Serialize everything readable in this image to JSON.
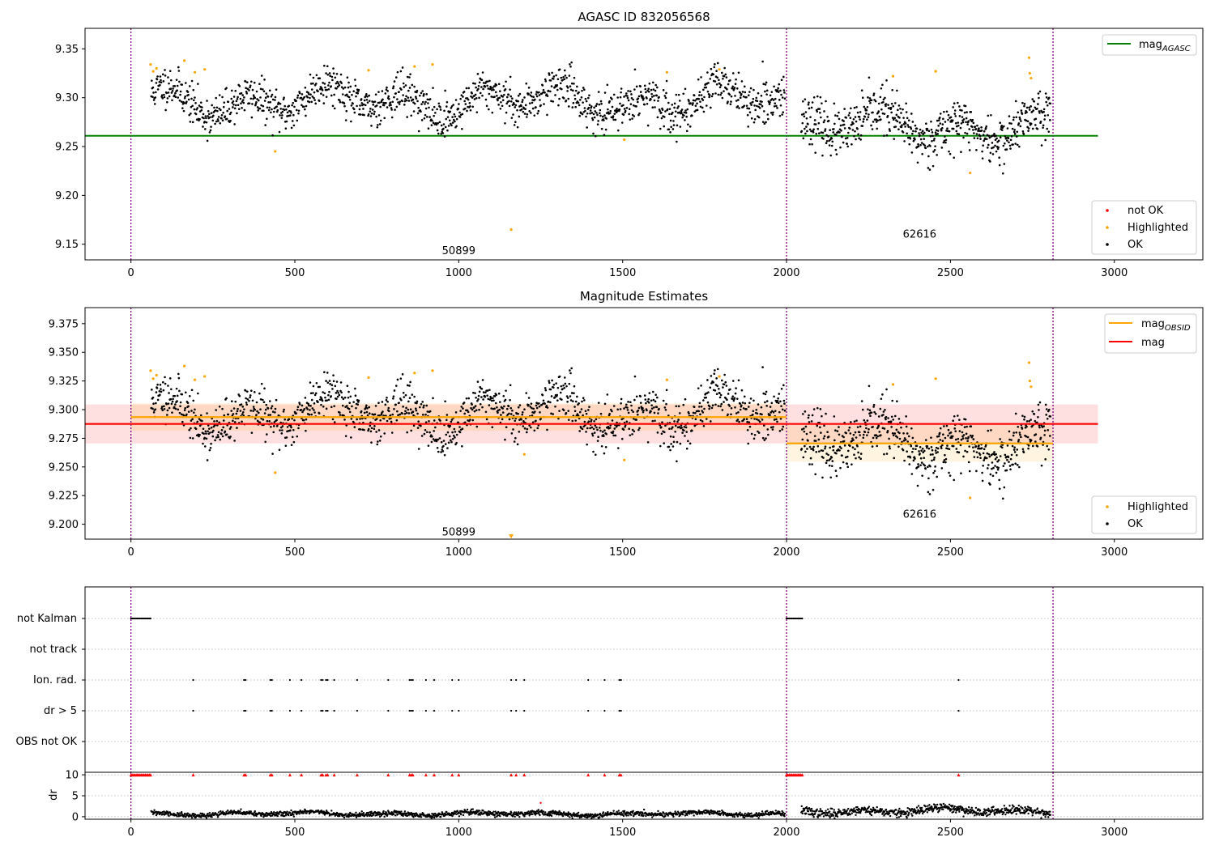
{
  "chart_data": [
    {
      "type": "scatter",
      "title": "AGASC ID 832056568",
      "xlim": [
        -140,
        3270
      ],
      "ylim": [
        9.134,
        9.371
      ],
      "x_ticks": [
        0,
        500,
        1000,
        1500,
        2000,
        2500,
        3000
      ],
      "y_ticks": [
        9.15,
        9.2,
        9.25,
        9.3,
        9.35
      ],
      "y_tick_labels": [
        "9.15",
        "9.20",
        "9.25",
        "9.30",
        "9.35"
      ],
      "obs_boundaries": [
        0,
        2000,
        2813
      ],
      "obsid_labels": [
        {
          "x": 1000,
          "y": 9.143,
          "text": "50899"
        },
        {
          "x": 2406,
          "y": 9.16,
          "text": "62616"
        }
      ],
      "reference_lines": [
        {
          "name": "mag_AGASC",
          "y": 9.261,
          "x_range": [
            -140,
            2950
          ],
          "color": "#008000"
        }
      ],
      "series": [
        {
          "name": "not OK",
          "color": "#ff0000",
          "points": []
        },
        {
          "name": "Highlighted",
          "color": "#ffa500",
          "points": [
            [
              60,
              9.334
            ],
            [
              68,
              9.327
            ],
            [
              78,
              9.33
            ],
            [
              163,
              9.338
            ],
            [
              195,
              9.326
            ],
            [
              225,
              9.329
            ],
            [
              440,
              9.245
            ],
            [
              725,
              9.328
            ],
            [
              865,
              9.332
            ],
            [
              920,
              9.334
            ],
            [
              1160,
              9.165
            ],
            [
              1505,
              9.257
            ],
            [
              1635,
              9.326
            ],
            [
              1795,
              9.329
            ],
            [
              2325,
              9.322
            ],
            [
              2455,
              9.327
            ],
            [
              2560,
              9.223
            ],
            [
              2740,
              9.341
            ],
            [
              2742,
              9.325
            ],
            [
              2746,
              9.32
            ]
          ]
        },
        {
          "name": "OK",
          "color": "#000000",
          "segments": [
            {
              "x_range": [
                62,
                1995
              ],
              "mean": 9.297,
              "amp": 0.012,
              "noise": 0.01,
              "n": 1400,
              "seed": 11
            },
            {
              "x_range": [
                2045,
                2805
              ],
              "mean": 9.27,
              "amp": 0.012,
              "noise": 0.012,
              "n": 600,
              "seed": 23
            }
          ]
        }
      ],
      "legend": {
        "position": "top-right",
        "entries": [
          {
            "label": "mag",
            "sub": "AGASC",
            "color": "#008000",
            "kind": "line"
          }
        ]
      },
      "legend2": {
        "position": "bottom-right",
        "entries": [
          {
            "label": "not OK",
            "color": "#ff0000",
            "kind": "dot"
          },
          {
            "label": "Highlighted",
            "color": "#ffa500",
            "kind": "dot"
          },
          {
            "label": "OK",
            "color": "#000000",
            "kind": "dot"
          }
        ]
      }
    },
    {
      "type": "scatter",
      "title": "Magnitude Estimates",
      "xlim": [
        -140,
        3270
      ],
      "ylim": [
        9.187,
        9.389
      ],
      "x_ticks": [
        0,
        500,
        1000,
        1500,
        2000,
        2500,
        3000
      ],
      "y_ticks": [
        9.2,
        9.225,
        9.25,
        9.275,
        9.3,
        9.325,
        9.35,
        9.375
      ],
      "y_tick_labels": [
        "9.200",
        "9.225",
        "9.250",
        "9.275",
        "9.300",
        "9.325",
        "9.350",
        "9.375"
      ],
      "obs_boundaries": [
        0,
        2000,
        2813
      ],
      "obsid_labels": [
        {
          "x": 1000,
          "y": 9.193,
          "text": "50899"
        },
        {
          "x": 2406,
          "y": 9.2085,
          "text": "62616"
        }
      ],
      "bands": [
        {
          "x_range": [
            -140,
            2950
          ],
          "y_range": [
            9.2705,
            9.3045
          ],
          "color": "#ff0000",
          "opacity": 0.12
        },
        {
          "x_range": [
            0,
            2000
          ],
          "y_range": [
            9.2815,
            9.3055
          ],
          "color": "#ffa500",
          "opacity": 0.12
        },
        {
          "x_range": [
            2000,
            2813
          ],
          "y_range": [
            9.2545,
            9.2865
          ],
          "color": "#ffa500",
          "opacity": 0.12
        }
      ],
      "reference_lines": [
        {
          "name": "mag_OBSID (50899)",
          "y": 9.2935,
          "x_range": [
            0,
            2000
          ],
          "color": "#ffa500"
        },
        {
          "name": "mag_OBSID (62616)",
          "y": 9.2705,
          "x_range": [
            2000,
            2813
          ],
          "color": "#ffa500"
        },
        {
          "name": "mag",
          "y": 9.2875,
          "x_range": [
            -140,
            2950
          ],
          "color": "#ff0000"
        }
      ],
      "series": [
        {
          "name": "Highlighted",
          "color": "#ffa500",
          "points": [
            [
              60,
              9.334
            ],
            [
              68,
              9.327
            ],
            [
              78,
              9.33
            ],
            [
              163,
              9.338
            ],
            [
              195,
              9.326
            ],
            [
              225,
              9.329
            ],
            [
              440,
              9.245
            ],
            [
              725,
              9.328
            ],
            [
              865,
              9.332
            ],
            [
              920,
              9.334
            ],
            [
              1200,
              9.261
            ],
            [
              1505,
              9.256
            ],
            [
              1635,
              9.326
            ],
            [
              1795,
              9.329
            ],
            [
              2325,
              9.322
            ],
            [
              2455,
              9.327
            ],
            [
              2560,
              9.223
            ],
            [
              2740,
              9.341
            ],
            [
              2742,
              9.325
            ],
            [
              2746,
              9.32
            ]
          ]
        },
        {
          "name": "OK",
          "color": "#000000",
          "segments": [
            {
              "x_range": [
                62,
                1995
              ],
              "mean": 9.297,
              "amp": 0.012,
              "noise": 0.01,
              "n": 1400,
              "seed": 11
            },
            {
              "x_range": [
                2045,
                2805
              ],
              "mean": 9.27,
              "amp": 0.012,
              "noise": 0.012,
              "n": 600,
              "seed": 23
            }
          ]
        }
      ],
      "off_scale_marker": {
        "x": 1160,
        "y": 9.189,
        "color": "#ffa500"
      },
      "legend": {
        "position": "top-right",
        "entries": [
          {
            "label": "mag",
            "sub": "OBSID",
            "color": "#ffa500",
            "kind": "line"
          },
          {
            "label": "mag",
            "sub": "",
            "color": "#ff0000",
            "kind": "line"
          }
        ]
      },
      "legend2": {
        "position": "bottom-right",
        "entries": [
          {
            "label": "Highlighted",
            "color": "#ffa500",
            "kind": "dot"
          },
          {
            "label": "OK",
            "color": "#000000",
            "kind": "dot"
          }
        ]
      }
    },
    {
      "type": "scatter",
      "xlim": [
        -140,
        3270
      ],
      "categories": [
        "not Kalman",
        "not track",
        "Ion. rad.",
        "dr > 5",
        "OBS not OK"
      ],
      "obs_boundaries": [
        0,
        2000,
        2813
      ],
      "flags": {
        "not Kalman": {
          "ranges": [
            [
              0,
              62
            ],
            [
              2000,
              2050
            ]
          ]
        },
        "not track": {
          "ranges": []
        },
        "Ion. rad.": {
          "x": [
            190,
            345,
            350,
            425,
            430,
            485,
            520,
            580,
            585,
            595,
            600,
            620,
            690,
            785,
            850,
            855,
            860,
            900,
            925,
            980,
            1000,
            1160,
            1175,
            1200,
            1395,
            1445,
            1490,
            1495,
            2525
          ]
        },
        "dr > 5": {
          "x": [
            190,
            345,
            350,
            425,
            430,
            485,
            520,
            580,
            585,
            595,
            600,
            620,
            690,
            785,
            850,
            855,
            860,
            900,
            925,
            980,
            1000,
            1160,
            1175,
            1200,
            1395,
            1445,
            1490,
            1495,
            2525
          ]
        },
        "OBS not OK": {
          "ranges": []
        }
      }
    },
    {
      "type": "scatter",
      "xlim": [
        -140,
        3270
      ],
      "ylim": [
        -0.6,
        10.6
      ],
      "ylabel": "dr",
      "x_ticks": [
        0,
        500,
        1000,
        1500,
        2000,
        2500,
        3000
      ],
      "y_ticks": [
        0,
        5,
        10
      ],
      "y_tick_labels": [
        "0",
        "5",
        "10"
      ],
      "obs_boundaries": [
        0,
        2000,
        2813
      ],
      "clipped_marker_y": 10,
      "series": [
        {
          "name": "dr",
          "color": "#000000",
          "segments": [
            {
              "x_range": [
                62,
                1995
              ],
              "mean": 0.7,
              "amp": 0.3,
              "noise": 0.3,
              "n": 1400,
              "seed": 31
            },
            {
              "x_range": [
                2045,
                2805
              ],
              "mean": 1.4,
              "amp": 0.5,
              "noise": 0.5,
              "n": 600,
              "seed": 37
            }
          ]
        },
        {
          "name": "dr outliers",
          "color": "#ff0000",
          "points": [
            [
              1250,
              3.3
            ]
          ]
        }
      ]
    }
  ]
}
